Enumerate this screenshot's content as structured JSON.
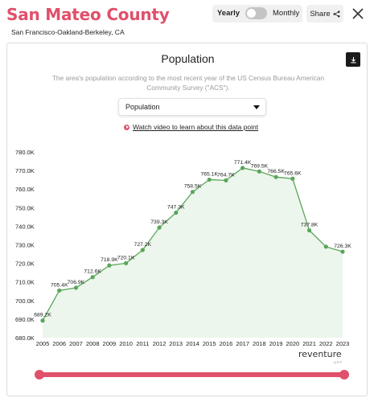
{
  "header": {
    "title": "San Mateo County",
    "subtitle": "San Francisco-Oakland-Berkeley, CA",
    "toggle": {
      "left_label": "Yearly",
      "right_label": "Monthly",
      "selected": "Yearly"
    },
    "share_label": "Share"
  },
  "card": {
    "title": "Population",
    "description": "The area's population according to the most recent year of the US Census Bureau American Community Survey (\"ACS\").",
    "select_value": "Population",
    "video_link": "Watch video to learn about this data point",
    "brand": "reventure",
    "brand_sub": "APP"
  },
  "colors": {
    "accent": "#e0506a",
    "line": "#5aa55a",
    "fill": "#eaf5ea"
  },
  "chart_data": {
    "type": "line",
    "x": [
      "2005",
      "2006",
      "2007",
      "2008",
      "2009",
      "2010",
      "2011",
      "2012",
      "2013",
      "2014",
      "2015",
      "2016",
      "2017",
      "2018",
      "2019",
      "2020",
      "2021",
      "2022",
      "2023"
    ],
    "values": [
      689.2,
      705.4,
      706.9,
      712.6,
      718.9,
      720.1,
      727.2,
      739.3,
      747.3,
      758.5,
      765.1,
      764.7,
      771.4,
      769.5,
      766.5,
      765.6,
      737.8,
      729.0,
      726.3
    ],
    "labels": [
      "689.2K",
      "705.4K",
      "706.9K",
      "712.6K",
      "718.9K",
      "720.1K",
      "727.2K",
      "739.3K",
      "747.3K",
      "758.5K",
      "765.1K",
      "764.7K",
      "771.4K",
      "769.5K",
      "766.5K",
      "765.6K",
      "737.8K",
      "",
      "726.3K"
    ],
    "y_ticks": [
      "680.0K",
      "690.0K",
      "700.0K",
      "710.0K",
      "720.0K",
      "730.0K",
      "740.0K",
      "750.0K",
      "760.0K",
      "770.0K",
      "780.0K"
    ],
    "ylim": [
      680,
      780
    ],
    "grid": false
  }
}
